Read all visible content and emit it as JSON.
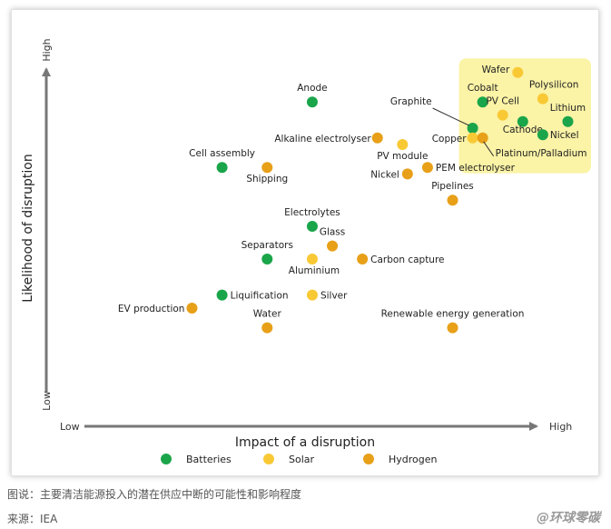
{
  "caption": "图说：主要清洁能源投入的潜在供应中断的可能性和影响程度",
  "source": "来源：IEA",
  "watermark": "@环球零碳",
  "colors": {
    "Batteries": "#1aa54a",
    "Solar": "#f9c935",
    "Hydrogen": "#e8a018",
    "highlight": "#fbf3a6",
    "axis": "#777777"
  },
  "chart_data": {
    "type": "scatter",
    "title": "",
    "xlabel": "Impact of a disruption",
    "ylabel": "Likelihood of disruption",
    "x_low_label": "Low",
    "x_high_label": "High",
    "y_low_label": "Low",
    "y_high_label": "High",
    "xlim": [
      0,
      100
    ],
    "ylim": [
      0,
      100
    ],
    "grid": false,
    "legend_position": "bottom",
    "highlight_region": {
      "x": [
        78,
        100
      ],
      "y": [
        74,
        98
      ]
    },
    "series": [
      {
        "name": "Batteries",
        "points": [
          {
            "label": "Anode",
            "x": 48,
            "y": 88
          },
          {
            "label": "Graphite",
            "x": 80,
            "y": 80
          },
          {
            "label": "Cobalt",
            "x": 82,
            "y": 88
          },
          {
            "label": "Cathode",
            "x": 90,
            "y": 82
          },
          {
            "label": "Lithium",
            "x": 99,
            "y": 82
          },
          {
            "label": "Nickel",
            "x": 94,
            "y": 78
          },
          {
            "label": "Cell assembly",
            "x": 30,
            "y": 68
          },
          {
            "label": "Electrolytes",
            "x": 48,
            "y": 50
          },
          {
            "label": "Separators",
            "x": 39,
            "y": 40
          },
          {
            "label": "Liquification",
            "x": 30,
            "y": 29
          }
        ]
      },
      {
        "name": "Solar",
        "points": [
          {
            "label": "Wafer",
            "x": 89,
            "y": 97
          },
          {
            "label": "Polysilicon",
            "x": 94,
            "y": 89
          },
          {
            "label": "PV Cell",
            "x": 86,
            "y": 84
          },
          {
            "label": "Copper",
            "x": 80,
            "y": 77
          },
          {
            "label": "PV module",
            "x": 66,
            "y": 75
          },
          {
            "label": "Aluminium",
            "x": 48,
            "y": 40
          },
          {
            "label": "Silver",
            "x": 48,
            "y": 29
          }
        ]
      },
      {
        "name": "Hydrogen",
        "points": [
          {
            "label": "Platinum/Palladium",
            "x": 82,
            "y": 77
          },
          {
            "label": "Alkaline electrolyser",
            "x": 61,
            "y": 77
          },
          {
            "label": "PEM electrolyser",
            "x": 71,
            "y": 68
          },
          {
            "label": "Nickel",
            "x": 67,
            "y": 66
          },
          {
            "label": "Shipping",
            "x": 39,
            "y": 68
          },
          {
            "label": "Pipelines",
            "x": 76,
            "y": 58
          },
          {
            "label": "Glass",
            "x": 52,
            "y": 44
          },
          {
            "label": "Carbon capture",
            "x": 58,
            "y": 40
          },
          {
            "label": "EV production",
            "x": 24,
            "y": 25
          },
          {
            "label": "Water",
            "x": 39,
            "y": 19
          },
          {
            "label": "Renewable energy generation",
            "x": 76,
            "y": 19
          }
        ]
      }
    ]
  }
}
